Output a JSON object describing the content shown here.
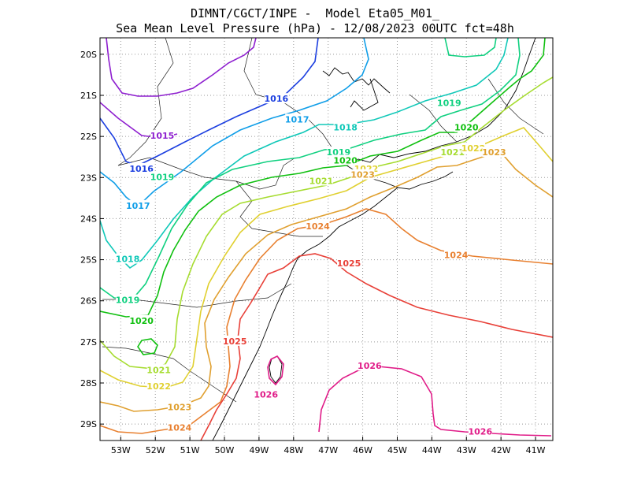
{
  "header": {
    "line1": "DIMNT/CGCT/INPE -  Model Eta05_M01_",
    "line2": "Sea Mean Level Pressure (hPa) - 12/08/2023 00UTC fct=48h"
  },
  "map": {
    "lon_range": [
      -53.6,
      -40.5
    ],
    "lat_range": [
      -29.4,
      -19.6
    ],
    "x_ticks": [
      "53W",
      "52W",
      "51W",
      "50W",
      "49W",
      "48W",
      "47W",
      "46W",
      "45W",
      "44W",
      "43W",
      "42W",
      "41W"
    ],
    "y_ticks": [
      "20S",
      "21S",
      "22S",
      "23S",
      "24S",
      "25S",
      "26S",
      "27S",
      "28S",
      "29S"
    ],
    "grid": "dotted"
  },
  "contours": [
    {
      "level": "1015",
      "color": "#8e1fcf",
      "labels": [
        {
          "text": "1015",
          "lon": -51.8,
          "lat": -22.0
        }
      ]
    },
    {
      "level": "1016",
      "color": "#1c3fe0",
      "labels": [
        {
          "text": "1016",
          "lon": -48.5,
          "lat": -21.1
        },
        {
          "text": "1016",
          "lon": -52.4,
          "lat": -22.8
        }
      ]
    },
    {
      "level": "1017",
      "color": "#109ee8",
      "labels": [
        {
          "text": "1017",
          "lon": -47.9,
          "lat": -21.6
        },
        {
          "text": "1017",
          "lon": -52.5,
          "lat": -23.7
        }
      ]
    },
    {
      "level": "1018",
      "color": "#10c8b8",
      "labels": [
        {
          "text": "1018",
          "lon": -46.5,
          "lat": -21.8
        },
        {
          "text": "1018",
          "lon": -52.8,
          "lat": -25.0
        }
      ]
    },
    {
      "level": "1019",
      "color": "#10d080",
      "labels": [
        {
          "text": "1019",
          "lon": -43.5,
          "lat": -21.2
        },
        {
          "text": "1019",
          "lon": -46.7,
          "lat": -22.4
        },
        {
          "text": "1019",
          "lon": -51.8,
          "lat": -23.0
        },
        {
          "text": "1019",
          "lon": -52.8,
          "lat": -26.0
        }
      ]
    },
    {
      "level": "1020",
      "color": "#10c010",
      "labels": [
        {
          "text": "1020",
          "lon": -43.0,
          "lat": -21.8
        },
        {
          "text": "1020",
          "lon": -46.5,
          "lat": -22.6
        },
        {
          "text": "1020",
          "lon": -52.4,
          "lat": -26.5
        }
      ]
    },
    {
      "level": "1021",
      "color": "#a6dc30",
      "labels": [
        {
          "text": "1021",
          "lon": -43.4,
          "lat": -22.4
        },
        {
          "text": "1021",
          "lon": -47.2,
          "lat": -23.1
        },
        {
          "text": "1021",
          "lon": -51.9,
          "lat": -27.7
        }
      ]
    },
    {
      "level": "1022",
      "color": "#e0d030",
      "labels": [
        {
          "text": "1022",
          "lon": -42.8,
          "lat": -22.3
        },
        {
          "text": "1022",
          "lon": -45.9,
          "lat": -22.8
        },
        {
          "text": "1022",
          "lon": -51.9,
          "lat": -28.1
        }
      ]
    },
    {
      "level": "1023",
      "color": "#e0a030",
      "labels": [
        {
          "text": "1023",
          "lon": -42.2,
          "lat": -22.4
        },
        {
          "text": "1023",
          "lon": -46.0,
          "lat": -22.95
        },
        {
          "text": "1023",
          "lon": -51.3,
          "lat": -28.6
        }
      ]
    },
    {
      "level": "1024",
      "color": "#e88030",
      "labels": [
        {
          "text": "1024",
          "lon": -47.3,
          "lat": -24.2
        },
        {
          "text": "1024",
          "lon": -43.3,
          "lat": -24.9
        },
        {
          "text": "1024",
          "lon": -51.3,
          "lat": -29.1
        }
      ]
    },
    {
      "level": "1025",
      "color": "#e84038",
      "labels": [
        {
          "text": "1025",
          "lon": -46.4,
          "lat": -25.1
        },
        {
          "text": "1025",
          "lon": -49.7,
          "lat": -27.0
        }
      ]
    },
    {
      "level": "1026",
      "color": "#e01c88",
      "labels": [
        {
          "text": "1026",
          "lon": -45.8,
          "lat": -27.6
        },
        {
          "text": "1026",
          "lon": -48.8,
          "lat": -28.3
        },
        {
          "text": "1026",
          "lon": -42.6,
          "lat": -29.2
        }
      ]
    }
  ]
}
